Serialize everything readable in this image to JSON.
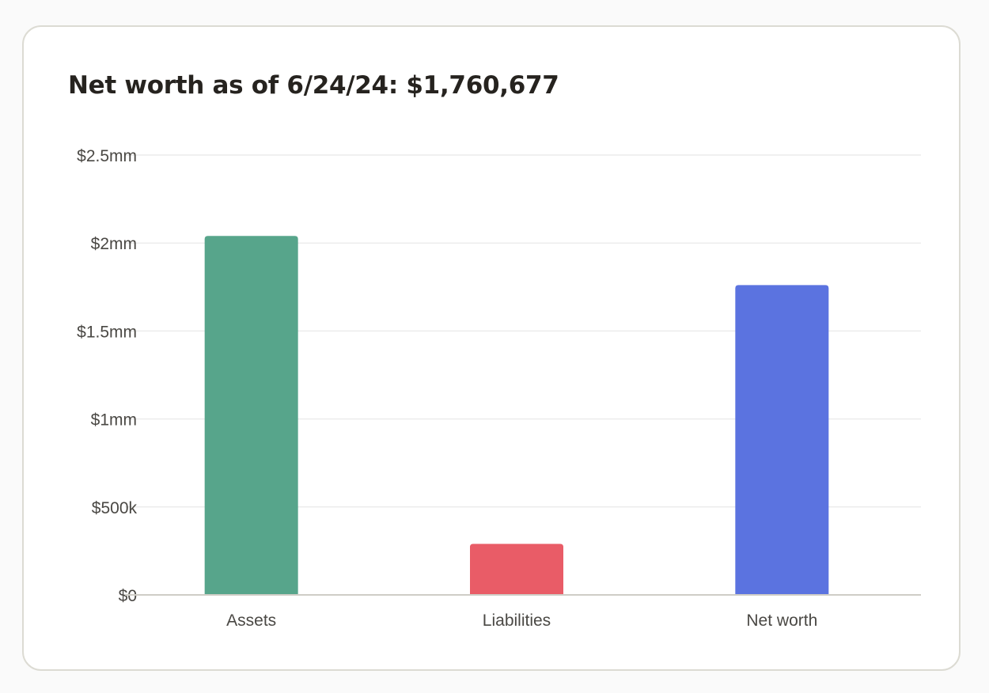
{
  "card": {
    "title": "Net worth as of 6/24/24: $1,760,677"
  },
  "chart_data": {
    "type": "bar",
    "title": "Net worth as of 6/24/24: $1,760,677",
    "categories": [
      "Assets",
      "Liabilities",
      "Net worth"
    ],
    "values": [
      2040000,
      290000,
      1760677
    ],
    "colors": [
      "#57a58b",
      "#e95c67",
      "#5b73e0"
    ],
    "ylim": [
      0,
      2500000
    ],
    "yticks": [
      {
        "value": 0,
        "label": "$0"
      },
      {
        "value": 500000,
        "label": "$500k"
      },
      {
        "value": 1000000,
        "label": "$1mm"
      },
      {
        "value": 1500000,
        "label": "$1.5mm"
      },
      {
        "value": 2000000,
        "label": "$2mm"
      },
      {
        "value": 2500000,
        "label": "$2.5mm"
      }
    ],
    "xlabel": "",
    "ylabel": "",
    "grid": true,
    "legend": "none"
  }
}
